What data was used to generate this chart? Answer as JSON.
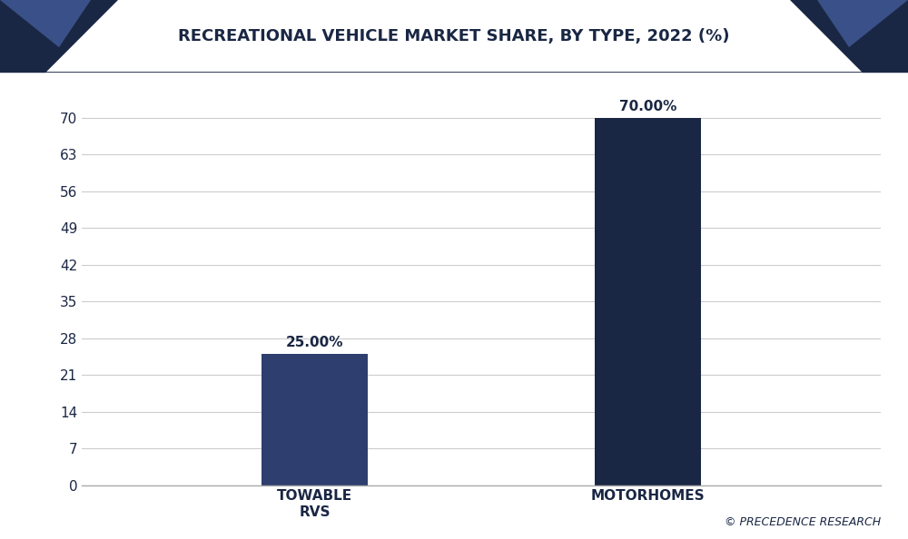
{
  "title": "RECREATIONAL VEHICLE MARKET SHARE, BY TYPE, 2022 (%)",
  "categories": [
    "TOWABLE\nRVS",
    "MOTORHOMES"
  ],
  "values": [
    25.0,
    70.0
  ],
  "bar_colors": [
    "#2E3F6F",
    "#1A2744"
  ],
  "bar_labels": [
    "25.00%",
    "70.00%"
  ],
  "yticks": [
    0,
    7,
    14,
    21,
    28,
    35,
    42,
    49,
    56,
    63,
    70
  ],
  "ylim": [
    0,
    77
  ],
  "background_color": "#ffffff",
  "plot_bg_color": "#ffffff",
  "title_color": "#1A2744",
  "tick_color": "#1A2744",
  "grid_color": "#cccccc",
  "footer_text": "© PRECEDENCE RESEARCH",
  "header_bg_color": "#efefef",
  "header_border_color": "#1A2744",
  "tri_dark_color": "#1A2744",
  "tri_mid_color": "#3A5088",
  "title_fontsize": 13,
  "label_fontsize": 11,
  "tick_fontsize": 11,
  "footer_fontsize": 9,
  "bar_width": 0.32
}
